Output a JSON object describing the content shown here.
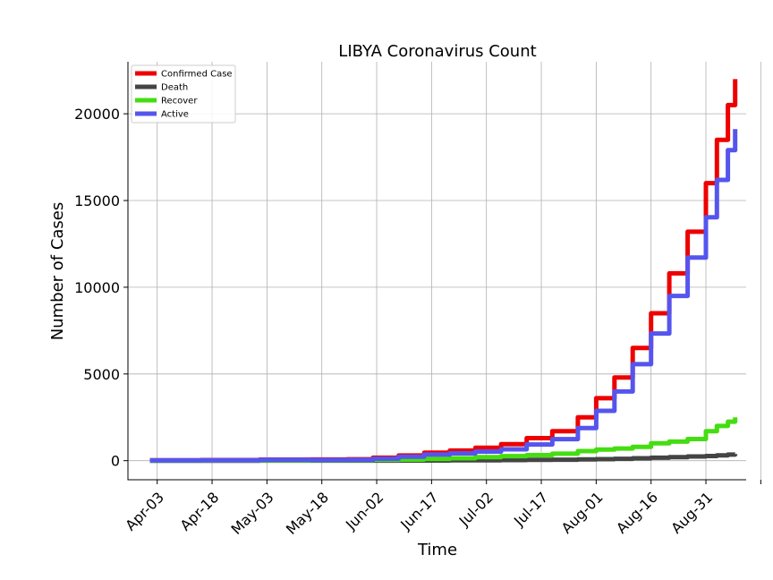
{
  "chart_data": {
    "type": "line",
    "title": "LIBYA Coronavirus Count",
    "xlabel": "Time",
    "ylabel": "Number of Cases",
    "x_tick_labels": [
      "Apr-03",
      "Apr-18",
      "May-03",
      "May-18",
      "Jun-02",
      "Jun-17",
      "Jul-02",
      "Jul-17",
      "Aug-01",
      "Aug-16",
      "Aug-31"
    ],
    "y_ticks": [
      0,
      5000,
      10000,
      15000,
      20000
    ],
    "ylim": [
      -1100,
      23000
    ],
    "xlim": [
      "2020-03-26",
      "2020-09-11"
    ],
    "grid": true,
    "legend_position": "top-left",
    "x": [
      "2020-04-01",
      "2020-04-15",
      "2020-05-01",
      "2020-05-15",
      "2020-05-25",
      "2020-06-01",
      "2020-06-08",
      "2020-06-15",
      "2020-06-22",
      "2020-06-29",
      "2020-07-06",
      "2020-07-13",
      "2020-07-20",
      "2020-07-27",
      "2020-08-01",
      "2020-08-06",
      "2020-08-11",
      "2020-08-16",
      "2020-08-21",
      "2020-08-26",
      "2020-08-31",
      "2020-09-03",
      "2020-09-06",
      "2020-09-08"
    ],
    "series": [
      {
        "name": "Confirmed Case",
        "color": "#ee0000",
        "values": [
          20,
          35,
          63,
          65,
          80,
          170,
          300,
          460,
          580,
          750,
          950,
          1300,
          1700,
          2500,
          3600,
          4800,
          6500,
          8500,
          10800,
          13200,
          16000,
          18500,
          20500,
          22000
        ]
      },
      {
        "name": "Death",
        "color": "#444444",
        "values": [
          1,
          1,
          3,
          3,
          3,
          5,
          8,
          12,
          18,
          25,
          35,
          45,
          55,
          70,
          85,
          110,
          140,
          170,
          200,
          240,
          270,
          310,
          350,
          380
        ]
      },
      {
        "name": "Recover",
        "color": "#44dd11",
        "values": [
          5,
          10,
          15,
          20,
          30,
          50,
          60,
          100,
          140,
          200,
          260,
          320,
          400,
          550,
          640,
          700,
          800,
          1000,
          1100,
          1250,
          1700,
          2000,
          2250,
          2500
        ]
      },
      {
        "name": "Active",
        "color": "#5555ee",
        "values": [
          14,
          24,
          45,
          42,
          47,
          115,
          232,
          348,
          422,
          525,
          655,
          935,
          1245,
          1880,
          2875,
          3990,
          5560,
          7330,
          9500,
          11710,
          14030,
          16190,
          17900,
          19120
        ]
      }
    ]
  }
}
